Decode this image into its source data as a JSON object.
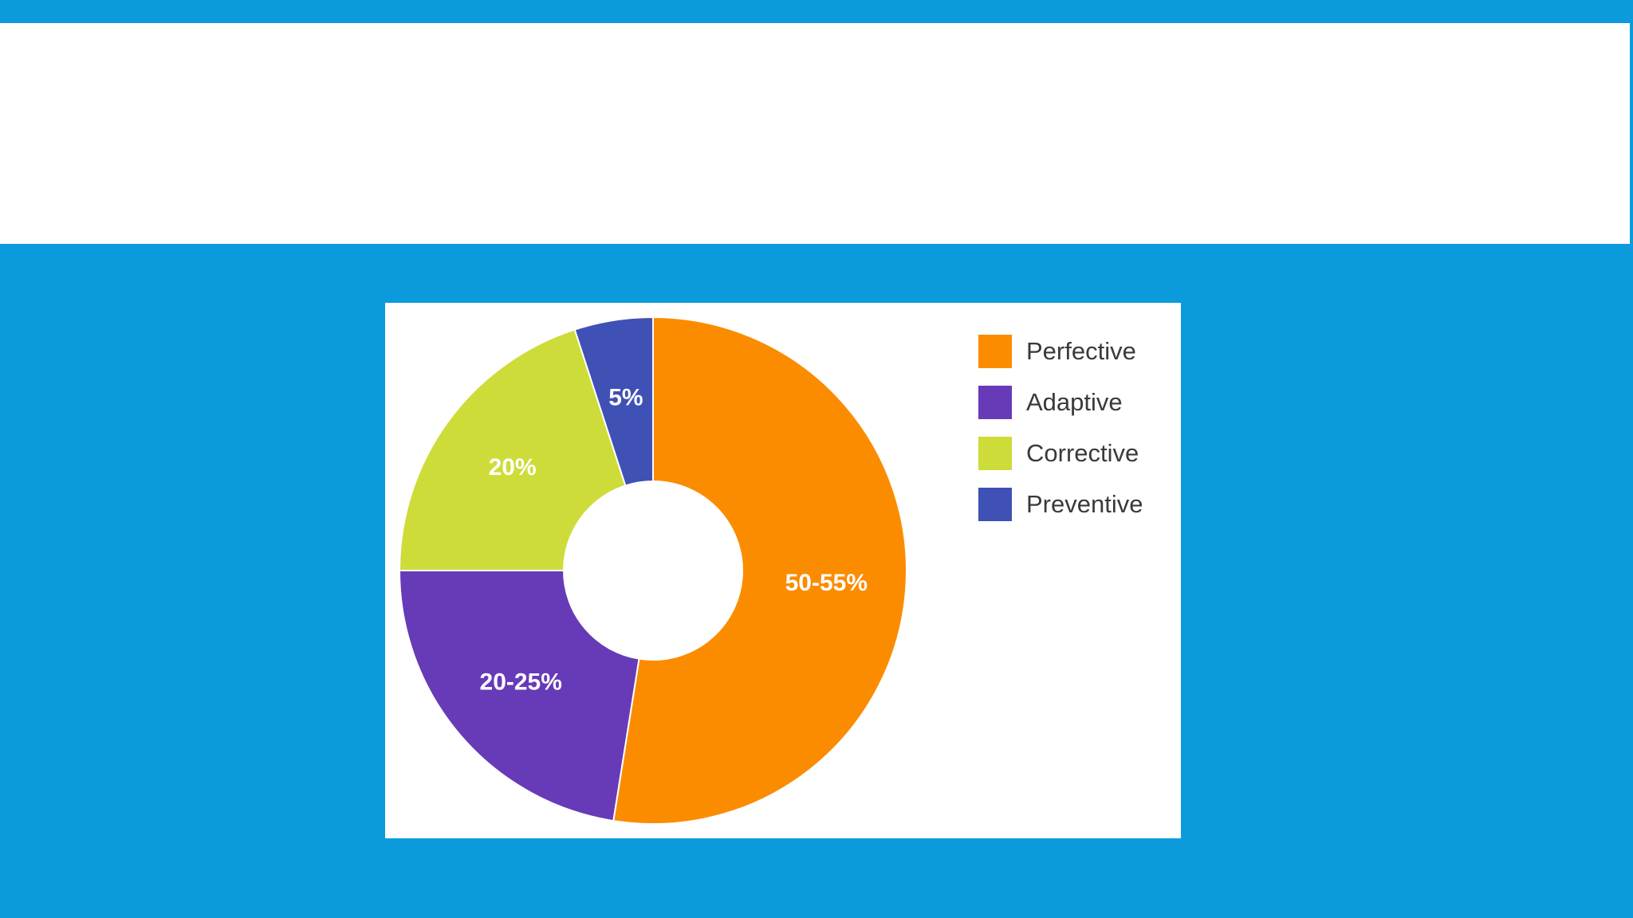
{
  "chart_data": {
    "type": "pie",
    "title": "",
    "xlabel": "",
    "ylabel": "",
    "legend_placement": "right",
    "slices": [
      {
        "name": "Perfective",
        "value": 52.5,
        "label": "50-55%",
        "color": "#fb8c00"
      },
      {
        "name": "Adaptive",
        "value": 22.5,
        "label": "20-25%",
        "color": "#673ab7"
      },
      {
        "name": "Corrective",
        "value": 20,
        "label": "20%",
        "color": "#cddc39"
      },
      {
        "name": "Preventive",
        "value": 5,
        "label": "5%",
        "color": "#3f51b5"
      }
    ]
  }
}
